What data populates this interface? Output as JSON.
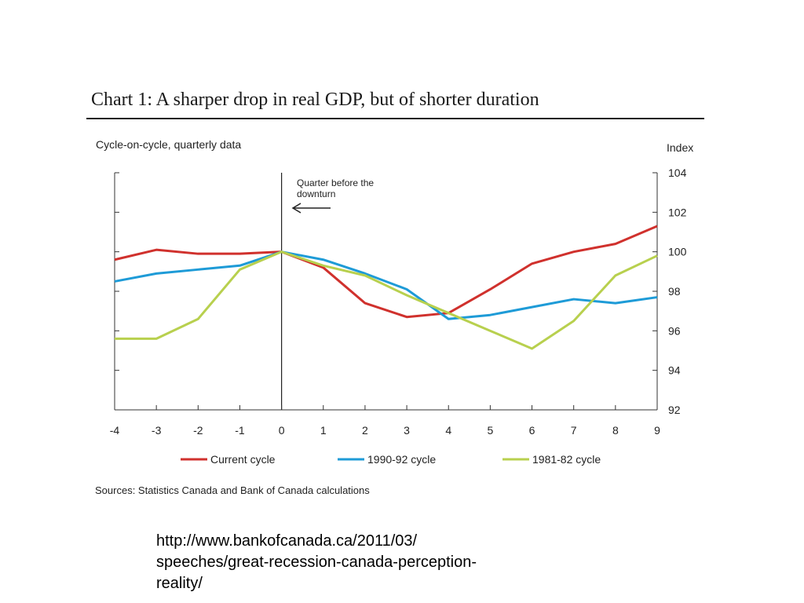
{
  "header": {
    "title": "Chart 1: A sharper drop in real GDP, but of shorter duration",
    "subtitle": "Cycle-on-cycle, quarterly data",
    "unit_label": "Index"
  },
  "annotation": {
    "line1": "Quarter before the",
    "line2": "downturn"
  },
  "footer": {
    "source": "Sources: Statistics Canada and Bank of Canada calculations",
    "url_lines": [
      "http://www.bankofcanada.ca/2011/03/",
      "speeches/great-recession-canada-perception-",
      "reality/"
    ]
  },
  "colors": {
    "current": "#d0312d",
    "cycle_1990": "#1e9bd7",
    "cycle_1981": "#b8d04e"
  },
  "chart_data": {
    "type": "line",
    "x": [
      -4,
      -3,
      -2,
      -1,
      0,
      1,
      2,
      3,
      4,
      5,
      6,
      7,
      8,
      9
    ],
    "xlim": [
      -4,
      9
    ],
    "ylim": [
      92,
      104
    ],
    "y_ticks": [
      92,
      94,
      96,
      98,
      100,
      102,
      104
    ],
    "y_axis_position": "right",
    "grid": false,
    "legend_position": "bottom",
    "series": [
      {
        "name": "Current cycle",
        "color": "#d0312d",
        "values": [
          99.6,
          100.1,
          99.9,
          99.9,
          100.0,
          99.2,
          97.4,
          96.7,
          96.9,
          98.1,
          99.4,
          100.0,
          100.4,
          101.3
        ]
      },
      {
        "name": "1990-92 cycle",
        "color": "#1e9bd7",
        "values": [
          98.5,
          98.9,
          99.1,
          99.3,
          100.0,
          99.6,
          98.9,
          98.1,
          96.6,
          96.8,
          97.2,
          97.6,
          97.4,
          97.7
        ]
      },
      {
        "name": "1981-82 cycle",
        "color": "#b8d04e",
        "values": [
          95.6,
          95.6,
          96.6,
          99.1,
          100.0,
          99.3,
          98.8,
          97.8,
          96.9,
          96.0,
          95.1,
          96.5,
          98.8,
          99.8
        ]
      }
    ]
  }
}
